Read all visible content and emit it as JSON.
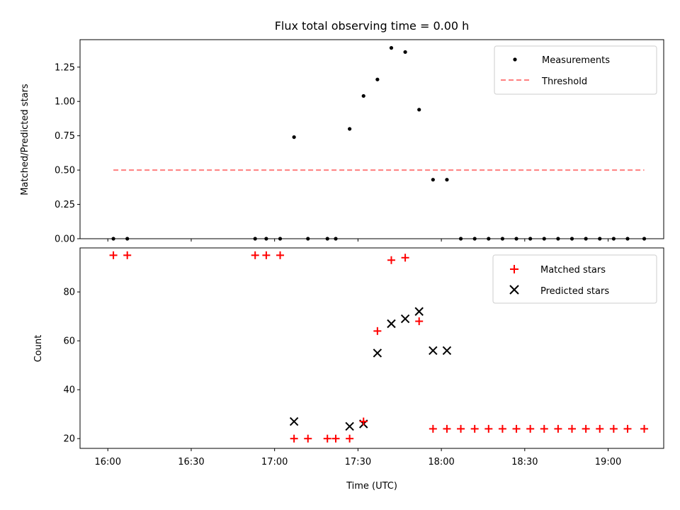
{
  "chart_data": [
    {
      "type": "scatter",
      "title": "Flux total observing time = 0.00 h",
      "ylabel": "Matched/Predicted stars",
      "ylim": [
        0,
        1.45
      ],
      "yticks": [
        0.0,
        0.25,
        0.5,
        0.75,
        1.0,
        1.25
      ],
      "ytick_labels": [
        "0.00",
        "0.25",
        "0.50",
        "0.75",
        "1.00",
        "1.25"
      ],
      "xlim_minutes": [
        -10,
        200
      ],
      "legend_position": "top-right",
      "series": [
        {
          "name": "Measurements",
          "marker": "dot",
          "color": "#000000",
          "x": [
            "16:02",
            "16:07",
            "16:53",
            "16:57",
            "17:02",
            "17:07",
            "17:12",
            "17:19",
            "17:22",
            "17:27",
            "17:32",
            "17:37",
            "17:42",
            "17:47",
            "17:52",
            "17:57",
            "18:02",
            "18:07",
            "18:12",
            "18:17",
            "18:22",
            "18:27",
            "18:32",
            "18:37",
            "18:42",
            "18:47",
            "18:52",
            "18:57",
            "19:02",
            "19:07",
            "19:13"
          ],
          "y": [
            0,
            0,
            0,
            0,
            0,
            0.74,
            0,
            0,
            0,
            0.8,
            1.04,
            1.16,
            1.39,
            1.36,
            0.94,
            0.43,
            0.43,
            0,
            0,
            0,
            0,
            0,
            0,
            0,
            0,
            0,
            0,
            0,
            0,
            0,
            0
          ]
        },
        {
          "name": "Threshold",
          "style": "dashed",
          "color": "#ff7f7f",
          "x": [
            "16:02",
            "19:13"
          ],
          "y": [
            0.5,
            0.5
          ]
        }
      ]
    },
    {
      "type": "scatter",
      "xlabel": "Time (UTC)",
      "ylabel": "Count",
      "ylim": [
        16,
        98
      ],
      "yticks": [
        20,
        40,
        60,
        80
      ],
      "ytick_labels": [
        "20",
        "40",
        "60",
        "80"
      ],
      "xticks": [
        "16:00",
        "16:30",
        "17:00",
        "17:30",
        "18:00",
        "18:30",
        "19:00"
      ],
      "xlim_minutes": [
        -10,
        200
      ],
      "legend_position": "top-right",
      "series": [
        {
          "name": "Matched stars",
          "marker": "plus",
          "color": "#ff0000",
          "x": [
            "16:02",
            "16:07",
            "16:53",
            "16:57",
            "17:02",
            "17:07",
            "17:12",
            "17:19",
            "17:22",
            "17:27",
            "17:32",
            "17:37",
            "17:42",
            "17:47",
            "17:52",
            "17:57",
            "18:02",
            "18:07",
            "18:12",
            "18:17",
            "18:22",
            "18:27",
            "18:32",
            "18:37",
            "18:42",
            "18:47",
            "18:52",
            "18:57",
            "19:02",
            "19:07",
            "19:13"
          ],
          "y": [
            95,
            95,
            95,
            95,
            95,
            20,
            20,
            20,
            20,
            20,
            27,
            64,
            93,
            94,
            68,
            24,
            24,
            24,
            24,
            24,
            24,
            24,
            24,
            24,
            24,
            24,
            24,
            24,
            24,
            24,
            24
          ]
        },
        {
          "name": "Predicted stars",
          "marker": "x",
          "color": "#000000",
          "x": [
            "17:07",
            "17:27",
            "17:32",
            "17:37",
            "17:42",
            "17:47",
            "17:52",
            "17:57",
            "18:02"
          ],
          "y": [
            27,
            25,
            26,
            55,
            67,
            69,
            72,
            56,
            56
          ]
        }
      ]
    }
  ]
}
